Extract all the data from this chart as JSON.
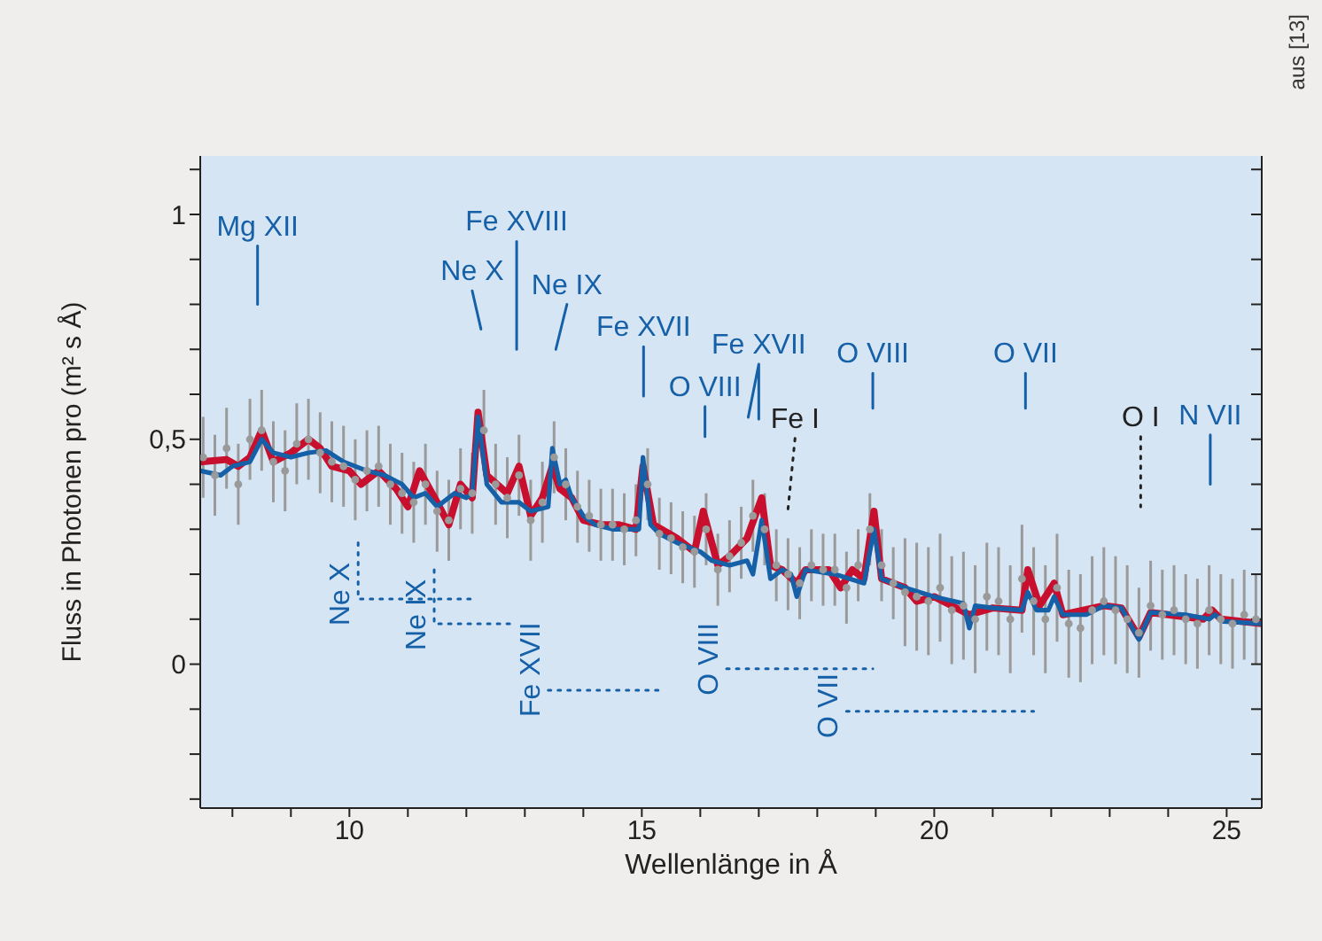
{
  "chart_data": {
    "type": "line",
    "xlabel": "Wellenlänge in Å",
    "ylabel": "Fluss in Photonen pro (m² s Å)",
    "line_style": "solid",
    "xlim": [
      7.45,
      25.6
    ],
    "xticks": [
      {
        "value": 8,
        "label": null
      },
      {
        "value": 9,
        "label": null
      },
      10,
      {
        "value": 11,
        "label": null
      },
      {
        "value": 12,
        "label": null
      },
      {
        "value": 13,
        "label": null
      },
      {
        "value": 14,
        "label": null
      },
      15,
      {
        "value": 16,
        "label": null
      },
      {
        "value": 17,
        "label": null
      },
      {
        "value": 18,
        "label": null
      },
      {
        "value": 19,
        "label": null
      },
      20,
      {
        "value": 21,
        "label": null
      },
      {
        "value": 22,
        "label": null
      },
      {
        "value": 23,
        "label": null
      },
      {
        "value": 24,
        "label": null
      },
      25
    ],
    "ylim": [
      -0.32,
      1.13
    ],
    "yticks": [
      {
        "value": -0.3,
        "label": null
      },
      {
        "value": -0.2,
        "label": null
      },
      {
        "value": -0.1,
        "label": null
      },
      0,
      {
        "value": 0.1,
        "label": null
      },
      {
        "value": 0.2,
        "label": null
      },
      {
        "value": 0.3,
        "label": null
      },
      {
        "value": 0.4,
        "label": null
      },
      {
        "value": 0.5,
        "label": "0,5"
      },
      {
        "value": 0.6,
        "label": null
      },
      {
        "value": 0.7,
        "label": null
      },
      {
        "value": 0.8,
        "label": null
      },
      {
        "value": 0.9,
        "label": null
      },
      1,
      {
        "value": 1.1,
        "label": null
      }
    ],
    "series": [
      {
        "type": "scatter",
        "color": "#9a9a9a",
        "marker": "circle",
        "x": [
          7.5,
          7.7,
          7.9,
          8.1,
          8.3,
          8.5,
          8.7,
          8.9,
          9.1,
          9.3,
          9.5,
          9.7,
          9.9,
          10.1,
          10.3,
          10.5,
          10.7,
          10.9,
          11.1,
          11.3,
          11.5,
          11.7,
          11.9,
          12.1,
          12.3,
          12.5,
          12.7,
          12.9,
          13.1,
          13.3,
          13.5,
          13.7,
          13.9,
          14.1,
          14.3,
          14.5,
          14.7,
          14.9,
          15.1,
          15.3,
          15.5,
          15.7,
          15.9,
          16.1,
          16.3,
          16.5,
          16.7,
          16.9,
          17.1,
          17.3,
          17.5,
          17.7,
          17.9,
          18.1,
          18.3,
          18.5,
          18.7,
          18.9,
          19.1,
          19.3,
          19.5,
          19.7,
          19.9,
          20.1,
          20.3,
          20.5,
          20.7,
          20.9,
          21.1,
          21.3,
          21.5,
          21.7,
          21.9,
          22.1,
          22.3,
          22.5,
          22.7,
          22.9,
          23.1,
          23.3,
          23.5,
          23.7,
          23.9,
          24.1,
          24.3,
          24.5,
          24.7,
          24.9,
          25.1,
          25.3,
          25.5
        ],
        "values": [
          0.46,
          0.42,
          0.48,
          0.4,
          0.5,
          0.52,
          0.45,
          0.43,
          0.49,
          0.5,
          0.47,
          0.45,
          0.44,
          0.41,
          0.43,
          0.44,
          0.4,
          0.38,
          0.36,
          0.4,
          0.34,
          0.32,
          0.39,
          0.38,
          0.52,
          0.4,
          0.37,
          0.42,
          0.32,
          0.36,
          0.46,
          0.4,
          0.35,
          0.33,
          0.31,
          0.31,
          0.3,
          0.32,
          0.4,
          0.29,
          0.28,
          0.26,
          0.25,
          0.3,
          0.21,
          0.24,
          0.27,
          0.33,
          0.3,
          0.22,
          0.2,
          0.18,
          0.22,
          0.21,
          0.21,
          0.17,
          0.22,
          0.3,
          0.22,
          0.18,
          0.16,
          0.15,
          0.14,
          0.17,
          0.12,
          0.13,
          0.1,
          0.15,
          0.14,
          0.1,
          0.19,
          0.14,
          0.1,
          0.17,
          0.09,
          0.08,
          0.12,
          0.14,
          0.12,
          0.1,
          0.07,
          0.13,
          0.11,
          0.12,
          0.1,
          0.09,
          0.12,
          0.1,
          0.09,
          0.11,
          0.1
        ],
        "errors": [
          0.09,
          0.09,
          0.09,
          0.09,
          0.09,
          0.09,
          0.09,
          0.09,
          0.09,
          0.09,
          0.09,
          0.09,
          0.09,
          0.09,
          0.09,
          0.09,
          0.09,
          0.09,
          0.09,
          0.09,
          0.09,
          0.09,
          0.09,
          0.09,
          0.09,
          0.09,
          0.09,
          0.09,
          0.09,
          0.09,
          0.08,
          0.08,
          0.08,
          0.08,
          0.08,
          0.08,
          0.08,
          0.08,
          0.08,
          0.08,
          0.08,
          0.08,
          0.08,
          0.08,
          0.08,
          0.08,
          0.08,
          0.08,
          0.08,
          0.08,
          0.08,
          0.08,
          0.08,
          0.08,
          0.08,
          0.08,
          0.08,
          0.08,
          0.08,
          0.08,
          0.12,
          0.12,
          0.12,
          0.12,
          0.12,
          0.12,
          0.12,
          0.12,
          0.12,
          0.12,
          0.12,
          0.12,
          0.12,
          0.12,
          0.12,
          0.12,
          0.12,
          0.12,
          0.12,
          0.12,
          0.1,
          0.1,
          0.1,
          0.1,
          0.1,
          0.1,
          0.1,
          0.1,
          0.1,
          0.1,
          0.1
        ]
      },
      {
        "color": "#c8102e",
        "x": [
          7.45,
          7.9,
          8.1,
          8.3,
          8.5,
          8.7,
          9.0,
          9.3,
          9.5,
          9.7,
          10.0,
          10.2,
          10.5,
          10.8,
          11.0,
          11.2,
          11.5,
          11.7,
          11.9,
          12.1,
          12.2,
          12.35,
          12.7,
          12.9,
          13.1,
          13.3,
          13.47,
          13.6,
          13.8,
          14.0,
          14.3,
          14.6,
          14.9,
          15.02,
          15.2,
          15.6,
          15.9,
          16.05,
          16.3,
          16.5,
          16.8,
          17.05,
          17.2,
          17.4,
          17.65,
          17.8,
          18.2,
          18.4,
          18.6,
          18.8,
          18.97,
          19.1,
          19.5,
          19.7,
          20.0,
          20.6,
          21.0,
          21.5,
          21.6,
          21.8,
          22.05,
          22.2,
          22.9,
          23.2,
          23.5,
          23.7,
          24.6,
          24.75,
          24.9,
          25.6
        ],
        "values": [
          0.45,
          0.455,
          0.44,
          0.46,
          0.52,
          0.45,
          0.47,
          0.5,
          0.48,
          0.44,
          0.43,
          0.4,
          0.43,
          0.39,
          0.35,
          0.43,
          0.36,
          0.31,
          0.4,
          0.37,
          0.56,
          0.42,
          0.38,
          0.44,
          0.33,
          0.37,
          0.44,
          0.39,
          0.37,
          0.32,
          0.31,
          0.31,
          0.3,
          0.44,
          0.31,
          0.28,
          0.25,
          0.34,
          0.22,
          0.24,
          0.28,
          0.37,
          0.22,
          0.21,
          0.18,
          0.21,
          0.21,
          0.17,
          0.21,
          0.19,
          0.34,
          0.19,
          0.17,
          0.14,
          0.15,
          0.11,
          0.125,
          0.12,
          0.21,
          0.13,
          0.18,
          0.11,
          0.13,
          0.125,
          0.06,
          0.115,
          0.1,
          0.12,
          0.1,
          0.09
        ]
      },
      {
        "color": "#1660a8",
        "x": [
          7.45,
          7.8,
          8.0,
          8.3,
          8.5,
          8.7,
          9.0,
          9.3,
          9.6,
          9.9,
          10.3,
          10.6,
          10.9,
          11.1,
          11.3,
          11.5,
          11.8,
          12.0,
          12.1,
          12.2,
          12.35,
          12.6,
          12.9,
          13.1,
          13.4,
          13.47,
          13.6,
          13.7,
          13.8,
          14.0,
          14.2,
          14.5,
          14.8,
          14.95,
          15.02,
          15.15,
          15.3,
          15.6,
          16.0,
          16.2,
          16.5,
          16.8,
          16.9,
          17.05,
          17.2,
          17.4,
          17.55,
          17.65,
          17.8,
          18.3,
          18.8,
          18.97,
          19.1,
          19.5,
          20.0,
          20.5,
          20.6,
          20.7,
          21.0,
          21.5,
          21.6,
          21.75,
          21.95,
          22.05,
          22.2,
          22.6,
          22.9,
          23.2,
          23.5,
          23.7,
          24.3,
          24.7,
          24.8,
          24.95,
          25.6
        ],
        "values": [
          0.43,
          0.42,
          0.44,
          0.45,
          0.5,
          0.47,
          0.46,
          0.47,
          0.475,
          0.45,
          0.43,
          0.42,
          0.4,
          0.37,
          0.38,
          0.35,
          0.38,
          0.37,
          0.38,
          0.55,
          0.4,
          0.36,
          0.36,
          0.34,
          0.35,
          0.48,
          0.4,
          0.41,
          0.37,
          0.33,
          0.31,
          0.3,
          0.3,
          0.3,
          0.46,
          0.31,
          0.29,
          0.27,
          0.25,
          0.23,
          0.22,
          0.23,
          0.2,
          0.32,
          0.19,
          0.21,
          0.2,
          0.15,
          0.21,
          0.2,
          0.18,
          0.3,
          0.19,
          0.17,
          0.15,
          0.135,
          0.08,
          0.13,
          0.125,
          0.12,
          0.16,
          0.12,
          0.12,
          0.15,
          0.11,
          0.11,
          0.13,
          0.125,
          0.055,
          0.115,
          0.11,
          0.1,
          0.11,
          0.095,
          0.09
        ]
      },
      {
        "type": "line",
        "color": "#1660a8",
        "line_style": "solid",
        "x": [
          8.43,
          8.43
        ],
        "values": [
          0.93,
          0.8
        ]
      },
      {
        "type": "line",
        "color": "#1660a8",
        "line_style": "solid",
        "x": [
          12.1,
          12.25
        ],
        "values": [
          0.83,
          0.745
        ]
      },
      {
        "type": "line",
        "color": "#1660a8",
        "line_style": "solid",
        "x": [
          12.86,
          12.86
        ],
        "values": [
          0.94,
          0.7
        ]
      },
      {
        "type": "line",
        "color": "#1660a8",
        "line_style": "solid",
        "x": [
          13.72,
          13.53
        ],
        "values": [
          0.8,
          0.7
        ]
      },
      {
        "type": "line",
        "color": "#1660a8",
        "line_style": "solid",
        "x": [
          15.03,
          15.03
        ],
        "values": [
          0.706,
          0.596
        ]
      },
      {
        "type": "line",
        "color": "#1660a8",
        "line_style": "solid",
        "x": [
          16.08,
          16.08
        ],
        "values": [
          0.573,
          0.506
        ]
      },
      {
        "type": "line",
        "color": "#1660a8",
        "line_style": "solid",
        "x": [
          16.82,
          17.0,
          17.0
        ],
        "values": [
          0.549,
          0.667,
          0.545
        ]
      },
      {
        "type": "line",
        "color": "#222222",
        "line_style": "dotted",
        "x": [
          17.62,
          17.5
        ],
        "values": [
          0.502,
          0.345
        ]
      },
      {
        "type": "line",
        "color": "#1660a8",
        "line_style": "solid",
        "x": [
          18.95,
          18.95
        ],
        "values": [
          0.647,
          0.569
        ]
      },
      {
        "type": "line",
        "color": "#1660a8",
        "line_style": "solid",
        "x": [
          21.56,
          21.56
        ],
        "values": [
          0.647,
          0.569
        ]
      },
      {
        "type": "line",
        "color": "#222222",
        "line_style": "dotted",
        "x": [
          23.53,
          23.53
        ],
        "values": [
          0.506,
          0.35
        ]
      },
      {
        "type": "line",
        "color": "#1660a8",
        "line_style": "solid",
        "x": [
          24.72,
          24.72
        ],
        "values": [
          0.51,
          0.4
        ]
      },
      {
        "type": "line",
        "color": "#1660a8",
        "line_style": "dotted",
        "x": [
          10.15,
          10.15,
          12.15
        ],
        "values": [
          0.27,
          0.145,
          0.145
        ]
      },
      {
        "type": "line",
        "color": "#1660a8",
        "line_style": "dotted",
        "x": [
          11.45,
          11.45,
          12.8
        ],
        "values": [
          0.21,
          0.09,
          0.09
        ]
      },
      {
        "type": "line",
        "color": "#1660a8",
        "line_style": "dotted",
        "x": [
          13.4,
          15.35
        ],
        "values": [
          -0.058,
          -0.058
        ]
      },
      {
        "type": "line",
        "color": "#1660a8",
        "line_style": "dotted",
        "x": [
          16.45,
          18.95
        ],
        "values": [
          -0.01,
          -0.01
        ]
      },
      {
        "type": "line",
        "color": "#1660a8",
        "line_style": "dotted",
        "x": [
          18.5,
          21.7
        ],
        "values": [
          -0.105,
          -0.105
        ]
      }
    ],
    "annotations": [
      {
        "text": "Mg XII",
        "x": 8.43,
        "y": 0.93
      },
      {
        "text": "Ne X",
        "x": 12.1,
        "y": 0.83
      },
      {
        "text": "Fe XVIII",
        "x": 12.86,
        "y": 0.94
      },
      {
        "text": "Ne IX",
        "x": 13.72,
        "y": 0.8
      },
      {
        "text": "Fe XVII",
        "x": 15.03,
        "y": 0.706
      },
      {
        "text": "O VIII",
        "x": 16.08,
        "y": 0.573
      },
      {
        "text": "Fe XVII",
        "x": 17.0,
        "y": 0.667
      },
      {
        "text": "Fe I",
        "x": 17.62,
        "y": 0.502
      },
      {
        "text": "O VIII",
        "x": 18.95,
        "y": 0.647
      },
      {
        "text": "O VII",
        "x": 21.56,
        "y": 0.647
      },
      {
        "text": "O I",
        "x": 23.53,
        "y": 0.506
      },
      {
        "text": "N VII",
        "x": 24.72,
        "y": 0.51
      },
      {
        "text": "Ne X",
        "x": 10.15,
        "y": 0.145
      },
      {
        "text": "Ne IX",
        "x": 11.45,
        "y": 0.09
      },
      {
        "text": "Fe XVII",
        "x": 13.4,
        "y": -0.058
      },
      {
        "text": "O VIII",
        "x": 16.45,
        "y": -0.01
      },
      {
        "text": "O VII",
        "x": 18.5,
        "y": -0.105
      },
      "aus [13]"
    ]
  }
}
